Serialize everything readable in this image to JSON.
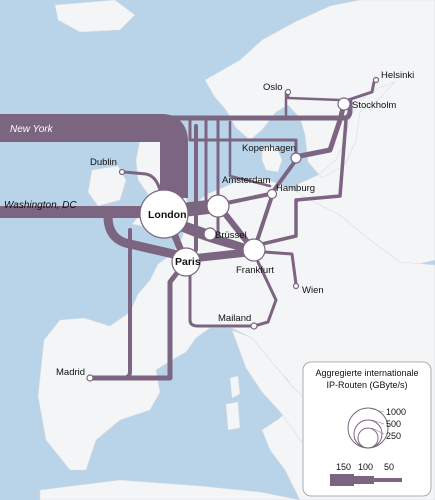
{
  "colors": {
    "sea": "#b9d3e8",
    "land": "#f4f5f6",
    "route": "#7b6580",
    "node_fill": "#ffffff",
    "node_stroke": "#7b6580"
  },
  "external": {
    "new_york": "New York",
    "washington": "Washington, DC"
  },
  "cities": {
    "helsinki": "Helsinki",
    "oslo": "Oslo",
    "stockholm": "Stockholm",
    "kopenhagen": "Kopenhagen",
    "dublin": "Dublin",
    "amsterdam": "Amsterdam",
    "hamburg": "Hamburg",
    "london": "London",
    "bruessel": "Brüssel",
    "paris": "Paris",
    "frankfurt": "Frankfurt",
    "wien": "Wien",
    "mailand": "Mailand",
    "madrid": "Madrid"
  },
  "legend": {
    "title_line1": "Aggregierte internationale",
    "title_line2": "IP-Routen (GByte/s)",
    "circle_values": [
      "1000",
      "500",
      "250"
    ],
    "band_values": [
      "150",
      "100",
      "50"
    ]
  }
}
